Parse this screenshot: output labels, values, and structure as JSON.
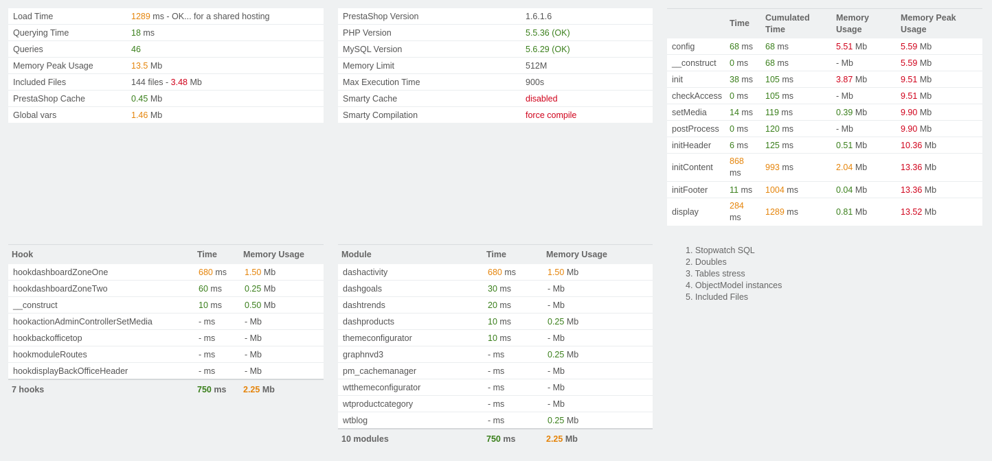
{
  "summary": [
    {
      "label": "Load Time",
      "value": "1289",
      "unit": " ms - OK... for a shared hosting"
    },
    {
      "label": "Querying Time",
      "value": "18",
      "unit": " ms"
    },
    {
      "label": "Queries",
      "value": "46",
      "unit": ""
    },
    {
      "label": "Memory Peak Usage",
      "value": "13.5",
      "unit": " Mb"
    },
    {
      "label": "Included Files",
      "value": "144 files - ",
      "value2": "3.48",
      "unit": " Mb"
    },
    {
      "label": "PrestaShop Cache",
      "value": "0.45",
      "unit": " Mb"
    },
    {
      "label": "Global vars",
      "value": "1.46",
      "unit": " Mb"
    }
  ],
  "versions": [
    {
      "label": "PrestaShop Version",
      "value": "1.6.1.6"
    },
    {
      "label": "PHP Version",
      "value": "5.5.36 (OK)"
    },
    {
      "label": "MySQL Version",
      "value": "5.6.29 (OK)"
    },
    {
      "label": "Memory Limit",
      "value": "512M"
    },
    {
      "label": "Max Execution Time",
      "value": "900s"
    },
    {
      "label": "Smarty Cache",
      "value": "disabled"
    },
    {
      "label": "Smarty Compilation",
      "value": "force compile"
    }
  ],
  "controller": {
    "headers": [
      "",
      "Time",
      "Cumulated Time",
      "Memory Usage",
      "Memory Peak Usage"
    ],
    "rows": [
      {
        "name": "config",
        "time": "68",
        "cum": "68",
        "mem": "5.51",
        "peak": "5.59"
      },
      {
        "name": "__construct",
        "time": "0",
        "cum": "68",
        "mem": "-",
        "peak": "5.59"
      },
      {
        "name": "init",
        "time": "38",
        "cum": "105",
        "mem": "3.87",
        "peak": "9.51"
      },
      {
        "name": "checkAccess",
        "time": "0",
        "cum": "105",
        "mem": "-",
        "peak": "9.51"
      },
      {
        "name": "setMedia",
        "time": "14",
        "cum": "119",
        "mem": "0.39",
        "peak": "9.90"
      },
      {
        "name": "postProcess",
        "time": "0",
        "cum": "120",
        "mem": "-",
        "peak": "9.90"
      },
      {
        "name": "initHeader",
        "time": "6",
        "cum": "125",
        "mem": "0.51",
        "peak": "10.36"
      },
      {
        "name": "initContent",
        "time": "868",
        "cum": "993",
        "mem": "2.04",
        "peak": "13.36"
      },
      {
        "name": "initFooter",
        "time": "11",
        "cum": "1004",
        "mem": "0.04",
        "peak": "13.36"
      },
      {
        "name": "display",
        "time": "284",
        "cum": "1289",
        "mem": "0.81",
        "peak": "13.52"
      }
    ],
    "ms_unit": " ms",
    "mb_unit": " Mb"
  },
  "hooks": {
    "headers": [
      "Hook",
      "Time",
      "Memory Usage"
    ],
    "rows": [
      {
        "name": "hookdashboardZoneOne",
        "time": "680",
        "mem": "1.50"
      },
      {
        "name": "hookdashboardZoneTwo",
        "time": "60",
        "mem": "0.25"
      },
      {
        "name": "__construct",
        "time": "10",
        "mem": "0.50"
      },
      {
        "name": "hookactionAdminControllerSetMedia",
        "time": "-",
        "mem": "-"
      },
      {
        "name": "hookbackofficetop",
        "time": "-",
        "mem": "-"
      },
      {
        "name": "hookmoduleRoutes",
        "time": "-",
        "mem": "-"
      },
      {
        "name": "hookdisplayBackOfficeHeader",
        "time": "-",
        "mem": "-"
      }
    ],
    "total": {
      "label": "7 hooks",
      "time": "750",
      "mem": "2.25"
    }
  },
  "modules": {
    "headers": [
      "Module",
      "Time",
      "Memory Usage"
    ],
    "rows": [
      {
        "name": "dashactivity",
        "time": "680",
        "mem": "1.50"
      },
      {
        "name": "dashgoals",
        "time": "30",
        "mem": "-"
      },
      {
        "name": "dashtrends",
        "time": "20",
        "mem": "-"
      },
      {
        "name": "dashproducts",
        "time": "10",
        "mem": "0.25"
      },
      {
        "name": "themeconfigurator",
        "time": "10",
        "mem": "-"
      },
      {
        "name": "graphnvd3",
        "time": "-",
        "mem": "0.25"
      },
      {
        "name": "pm_cachemanager",
        "time": "-",
        "mem": "-"
      },
      {
        "name": "wtthemeconfigurator",
        "time": "-",
        "mem": "-"
      },
      {
        "name": "wtproductcategory",
        "time": "-",
        "mem": "-"
      },
      {
        "name": "wtblog",
        "time": "-",
        "mem": "0.25"
      }
    ],
    "total": {
      "label": "10 modules",
      "time": "750",
      "mem": "2.25"
    }
  },
  "links": [
    "1. Stopwatch SQL",
    "2. Doubles",
    "3. Tables stress",
    "4. ObjectModel instances",
    "5. Included Files"
  ],
  "colors": {
    "green": "#3a7f1b",
    "orange": "#e5850c",
    "red": "#d0021b",
    "background": "#eff1f2"
  }
}
